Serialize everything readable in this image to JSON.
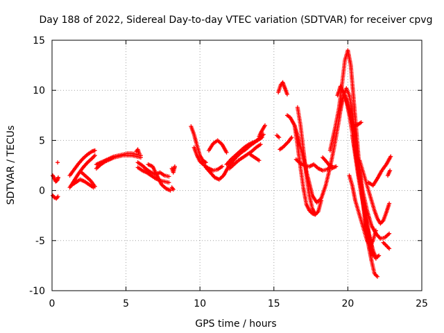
{
  "chart_data": {
    "type": "scatter",
    "title": "Day 188 of 2022, Sidereal Day-to-day VTEC variation (SDTVAR) for receiver cpvg",
    "xlabel": "GPS time / hours",
    "ylabel": "SDTVAR / TECUs",
    "xlim": [
      0,
      25
    ],
    "ylim": [
      -10,
      15
    ],
    "xticks": [
      0,
      5,
      10,
      15,
      20,
      25
    ],
    "yticks": [
      -10,
      -5,
      0,
      5,
      10,
      15
    ],
    "grid": true,
    "marker": "+",
    "color": "#ff0000",
    "series": [
      {
        "name": "seg-a",
        "x": [
          0.05,
          0.15,
          0.25,
          0.35,
          0.42
        ],
        "y": [
          1.5,
          1.2,
          0.9,
          1.0,
          1.3
        ]
      },
      {
        "name": "seg-b",
        "x": [
          0.05,
          0.15,
          0.3,
          0.4
        ],
        "y": [
          -0.5,
          -0.7,
          -0.8,
          -0.6
        ]
      },
      {
        "name": "seg-c",
        "x": [
          0.38
        ],
        "y": [
          2.8
        ]
      },
      {
        "name": "seg-d",
        "x": [
          1.2,
          1.5,
          1.8,
          2.1,
          2.4,
          2.7,
          2.9
        ],
        "y": [
          1.5,
          2.1,
          2.7,
          3.2,
          3.6,
          3.9,
          4.0
        ]
      },
      {
        "name": "seg-e",
        "x": [
          1.2,
          1.5,
          1.8,
          2.1,
          2.4,
          2.7,
          2.9
        ],
        "y": [
          0.3,
          1.0,
          1.7,
          2.3,
          2.8,
          3.2,
          3.5
        ]
      },
      {
        "name": "seg-f",
        "x": [
          1.3,
          1.6,
          1.9,
          2.2,
          2.5,
          2.8
        ],
        "y": [
          0.5,
          0.8,
          1.1,
          0.9,
          0.6,
          0.3
        ]
      },
      {
        "name": "seg-g",
        "x": [
          2.0,
          2.3,
          2.6,
          2.9
        ],
        "y": [
          1.8,
          1.4,
          1.0,
          0.4
        ]
      },
      {
        "name": "seg-h",
        "x": [
          3.0,
          3.3,
          3.6,
          3.9,
          4.2,
          4.5,
          4.8,
          5.1,
          5.4,
          5.7,
          6.0
        ],
        "y": [
          2.2,
          2.6,
          2.9,
          3.1,
          3.3,
          3.4,
          3.5,
          3.5,
          3.5,
          3.4,
          3.3
        ]
      },
      {
        "name": "seg-i",
        "x": [
          3.0,
          3.3,
          3.6,
          3.9,
          4.2,
          4.5,
          4.8,
          5.1,
          5.4,
          5.7,
          6.0
        ],
        "y": [
          2.6,
          2.8,
          3.0,
          3.2,
          3.4,
          3.5,
          3.6,
          3.7,
          3.7,
          3.6,
          3.5
        ]
      },
      {
        "name": "seg-j",
        "x": [
          5.7,
          5.8,
          5.9
        ],
        "y": [
          3.9,
          4.1,
          3.7
        ]
      },
      {
        "name": "seg-k",
        "x": [
          5.8,
          6.1,
          6.4,
          6.7,
          7.0,
          7.3,
          7.6,
          7.9
        ],
        "y": [
          2.8,
          2.5,
          2.1,
          1.8,
          1.6,
          1.8,
          1.5,
          1.4
        ]
      },
      {
        "name": "seg-l",
        "x": [
          5.8,
          6.1,
          6.4,
          6.7,
          7.0,
          7.3,
          7.6,
          7.9
        ],
        "y": [
          2.3,
          2.0,
          1.8,
          1.5,
          1.2,
          1.0,
          0.9,
          0.8
        ]
      },
      {
        "name": "seg-m",
        "x": [
          6.5,
          6.8,
          7.1,
          7.4,
          7.7,
          8.0
        ],
        "y": [
          2.6,
          2.4,
          1.5,
          0.6,
          0.2,
          0.0
        ]
      },
      {
        "name": "seg-n",
        "x": [
          8.1,
          8.2,
          8.3
        ],
        "y": [
          2.2,
          1.8,
          2.4
        ]
      },
      {
        "name": "seg-o",
        "x": [
          8.1,
          8.2
        ],
        "y": [
          0.3,
          0.1
        ]
      },
      {
        "name": "seg-p",
        "x": [
          9.4,
          9.6,
          9.8,
          10.0,
          10.2,
          10.4
        ],
        "y": [
          6.4,
          5.6,
          4.5,
          3.5,
          3.0,
          2.8
        ]
      },
      {
        "name": "seg-q",
        "x": [
          9.6,
          9.8,
          10.0,
          10.3,
          10.6,
          10.9,
          11.2,
          11.5
        ],
        "y": [
          4.3,
          3.5,
          2.9,
          2.5,
          2.2,
          2.0,
          2.1,
          2.4
        ]
      },
      {
        "name": "seg-r",
        "x": [
          10.4,
          10.7,
          11.0,
          11.3,
          11.6,
          11.9,
          12.2,
          12.5,
          12.8,
          13.1,
          13.4,
          13.7,
          14.0,
          14.3
        ],
        "y": [
          2.3,
          1.8,
          1.3,
          1.1,
          1.5,
          2.3,
          2.9,
          3.4,
          3.8,
          4.1,
          4.5,
          4.8,
          5.2,
          5.6
        ]
      },
      {
        "name": "seg-s",
        "x": [
          10.6,
          10.9,
          11.2,
          11.5,
          11.8
        ],
        "y": [
          4.0,
          4.7,
          5.0,
          4.6,
          3.8
        ]
      },
      {
        "name": "seg-t",
        "x": [
          11.8,
          12.1,
          12.4,
          12.7,
          13.0,
          13.3,
          13.6,
          13.9,
          14.2
        ],
        "y": [
          2.6,
          3.1,
          3.5,
          3.9,
          4.3,
          4.6,
          4.8,
          5.0,
          5.3
        ]
      },
      {
        "name": "seg-u",
        "x": [
          12.0,
          12.3,
          12.6,
          12.9,
          13.2,
          13.5,
          13.8,
          14.1
        ],
        "y": [
          2.2,
          2.6,
          3.0,
          3.3,
          3.6,
          3.9,
          4.3,
          4.6
        ]
      },
      {
        "name": "seg-v",
        "x": [
          13.4,
          13.7,
          14.0
        ],
        "y": [
          3.6,
          3.3,
          3.0
        ]
      },
      {
        "name": "seg-w",
        "x": [
          14.0,
          14.2,
          14.4
        ],
        "y": [
          5.4,
          6.0,
          6.5
        ]
      },
      {
        "name": "seg-x",
        "x": [
          15.3,
          15.45,
          15.6,
          15.75,
          15.9
        ],
        "y": [
          9.8,
          10.5,
          10.8,
          10.2,
          9.6
        ]
      },
      {
        "name": "seg-y",
        "x": [
          15.2,
          15.35
        ],
        "y": [
          5.5,
          5.3
        ]
      },
      {
        "name": "seg-z",
        "x": [
          15.4,
          15.6,
          15.8,
          16.0,
          16.2
        ],
        "y": [
          4.1,
          4.3,
          4.6,
          4.9,
          5.3
        ]
      },
      {
        "name": "seg-aa",
        "x": [
          15.9,
          16.1,
          16.4,
          16.7,
          17.0,
          17.3,
          17.6,
          17.9,
          18.2,
          18.5,
          18.8,
          19.1,
          19.4,
          19.6
        ],
        "y": [
          7.5,
          7.3,
          6.5,
          5.0,
          3.2,
          1.3,
          -0.5,
          -1.2,
          -0.8,
          0.5,
          2.3,
          4.5,
          7.0,
          9.0
        ]
      },
      {
        "name": "seg-ab",
        "x": [
          16.6,
          16.8,
          17.0,
          17.2,
          17.4,
          17.6,
          17.8,
          18.0,
          18.2
        ],
        "y": [
          8.3,
          6.5,
          4.0,
          1.5,
          -0.5,
          -1.8,
          -2.4,
          -2.1,
          -1.0
        ]
      },
      {
        "name": "seg-ac",
        "x": [
          16.4,
          16.6,
          16.8,
          17.0,
          17.2,
          17.4,
          17.6,
          17.8
        ],
        "y": [
          6.5,
          4.5,
          2.3,
          0.2,
          -1.4,
          -2.0,
          -2.3,
          -2.4
        ]
      },
      {
        "name": "seg-ad",
        "x": [
          16.5,
          16.8,
          17.1,
          17.4,
          17.7,
          18.0,
          18.3,
          18.6,
          18.9
        ],
        "y": [
          3.1,
          2.7,
          2.5,
          2.4,
          2.6,
          2.2,
          2.0,
          2.1,
          2.5
        ]
      },
      {
        "name": "seg-ae",
        "x": [
          18.3,
          18.6,
          18.9,
          19.2
        ],
        "y": [
          3.3,
          2.8,
          2.2,
          2.4
        ]
      },
      {
        "name": "seg-af",
        "x": [
          18.8,
          19.1,
          19.4,
          19.6,
          19.8,
          20.0,
          20.2,
          20.4,
          20.6,
          20.8,
          21.0,
          21.2,
          21.4,
          21.6,
          21.8,
          22.0
        ],
        "y": [
          4.0,
          6.0,
          8.2,
          10.5,
          13.0,
          14.0,
          12.5,
          9.0,
          5.5,
          2.0,
          -1.0,
          -3.5,
          -5.5,
          -7.0,
          -8.3,
          -8.6
        ]
      },
      {
        "name": "seg-ag",
        "x": [
          19.3,
          19.5,
          19.7,
          19.9,
          20.1,
          20.3,
          20.5,
          20.7,
          20.9,
          21.1,
          21.3,
          21.5,
          21.7,
          21.9
        ],
        "y": [
          9.5,
          10.4,
          9.8,
          9.0,
          7.5,
          5.8,
          4.0,
          2.0,
          0.0,
          -1.8,
          -3.6,
          -5.0,
          -6.0,
          -6.8
        ]
      },
      {
        "name": "seg-ah",
        "x": [
          19.5,
          19.7,
          19.9,
          20.1,
          20.3,
          20.5,
          20.7,
          20.9,
          21.1,
          21.3,
          21.5,
          21.7
        ],
        "y": [
          8.0,
          9.4,
          10.2,
          9.5,
          7.8,
          5.5,
          3.0,
          0.5,
          -1.8,
          -4.0,
          -5.8,
          -6.5
        ]
      },
      {
        "name": "seg-ai",
        "x": [
          19.8,
          20.1,
          20.4,
          20.7,
          21.0,
          21.3,
          21.6,
          21.9,
          22.2,
          22.5,
          22.8
        ],
        "y": [
          9.5,
          8.0,
          6.0,
          3.0,
          0.0,
          -2.0,
          -3.5,
          -4.3,
          -4.8,
          -4.7,
          -4.3
        ]
      },
      {
        "name": "seg-aj",
        "x": [
          20.3,
          20.5,
          20.7,
          20.9,
          21.1,
          21.3,
          21.5,
          21.7,
          21.9,
          22.1
        ],
        "y": [
          5.5,
          3.5,
          1.5,
          -0.3,
          -1.8,
          -3.2,
          -4.8,
          -6.0,
          -6.7,
          -6.5
        ]
      },
      {
        "name": "seg-ak",
        "x": [
          20.1,
          20.3,
          20.5,
          20.7,
          20.9,
          21.1,
          21.3,
          21.5,
          21.7,
          21.9
        ],
        "y": [
          1.5,
          0.5,
          -1.0,
          -2.0,
          -3.0,
          -4.0,
          -5.0,
          -5.6,
          -5.0,
          -4.0
        ]
      },
      {
        "name": "seg-al",
        "x": [
          20.8,
          21.0,
          21.2,
          21.4,
          21.6,
          21.8,
          22.0,
          22.2,
          22.4,
          22.6,
          22.8
        ],
        "y": [
          3.0,
          2.0,
          1.0,
          0.0,
          -1.0,
          -2.0,
          -2.8,
          -3.3,
          -3.0,
          -2.2,
          -1.3
        ]
      },
      {
        "name": "seg-am",
        "x": [
          21.4,
          21.7,
          22.0,
          22.3,
          22.6,
          22.9
        ],
        "y": [
          0.8,
          0.5,
          1.2,
          2.0,
          2.6,
          3.4
        ]
      },
      {
        "name": "seg-an",
        "x": [
          20.3,
          20.5,
          20.7,
          20.9
        ],
        "y": [
          6.6,
          6.5,
          6.6,
          6.8
        ]
      },
      {
        "name": "seg-ao",
        "x": [
          22.4,
          22.6,
          22.8
        ],
        "y": [
          -5.2,
          -5.5,
          -5.8
        ]
      },
      {
        "name": "seg-ap",
        "x": [
          22.7,
          22.85
        ],
        "y": [
          1.5,
          2.0
        ]
      }
    ]
  }
}
